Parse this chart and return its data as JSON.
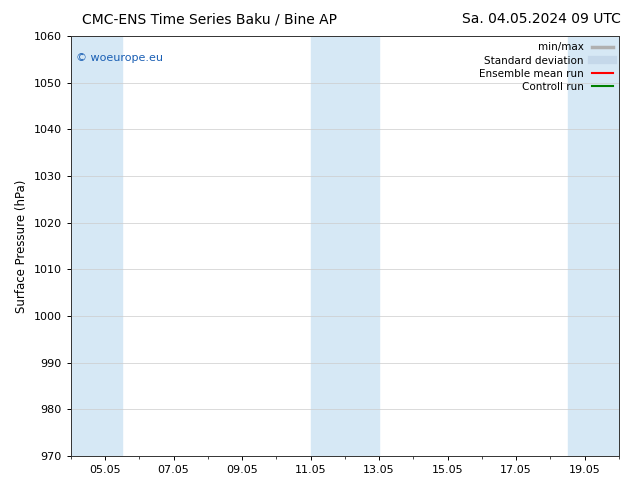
{
  "title_left": "CMC-ENS Time Series Baku / Bine AP",
  "title_right": "Sa. 04.05.2024 09 UTC",
  "ylabel": "Surface Pressure (hPa)",
  "ylim": [
    970,
    1060
  ],
  "yticks": [
    970,
    980,
    990,
    1000,
    1010,
    1020,
    1030,
    1040,
    1050,
    1060
  ],
  "xlim": [
    0,
    16
  ],
  "xtick_labels": [
    "05.05",
    "07.05",
    "09.05",
    "11.05",
    "13.05",
    "15.05",
    "17.05",
    "19.05"
  ],
  "xtick_positions": [
    1,
    3,
    5,
    7,
    9,
    11,
    13,
    15
  ],
  "shaded_bands": [
    {
      "x_start": 0.0,
      "x_end": 1.5,
      "color": "#d6e8f5"
    },
    {
      "x_start": 7.0,
      "x_end": 9.0,
      "color": "#d6e8f5"
    },
    {
      "x_start": 14.5,
      "x_end": 16.0,
      "color": "#d6e8f5"
    }
  ],
  "watermark_text": "© woeurope.eu",
  "watermark_color": "#1a5fb4",
  "legend_items": [
    {
      "label": "min/max",
      "color": "#b0b0b0",
      "lw": 2.5,
      "style": "solid"
    },
    {
      "label": "Standard deviation",
      "color": "#c5d8ea",
      "lw": 6,
      "style": "solid"
    },
    {
      "label": "Ensemble mean run",
      "color": "#ff0000",
      "lw": 1.5,
      "style": "solid"
    },
    {
      "label": "Controll run",
      "color": "#008000",
      "lw": 1.5,
      "style": "solid"
    }
  ],
  "bg_color": "#ffffff",
  "plot_bg_color": "#ffffff",
  "title_fontsize": 10,
  "tick_fontsize": 8,
  "ylabel_fontsize": 8.5,
  "legend_fontsize": 7.5,
  "watermark_fontsize": 8
}
